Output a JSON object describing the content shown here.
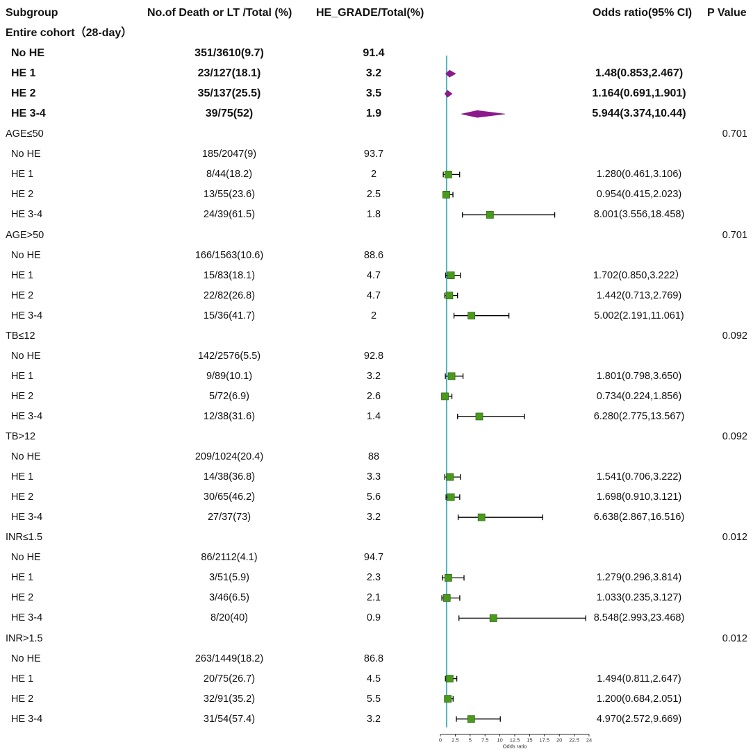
{
  "headers": {
    "subgroup": "Subgroup",
    "death": "No.of Death or LT /Total (%)",
    "hegrade": "HE_GRADE/Total(%)",
    "odds": "Odds ratio(95% CI)",
    "pvalue": "P Value"
  },
  "chart_data": {
    "type": "forest",
    "xlabel": "Odds ratio",
    "xlim": [
      0,
      24
    ],
    "reference_line": 1,
    "x_ticks": [
      "0",
      "2.5",
      "5",
      "7.5",
      "10",
      "12.5",
      "15",
      "17.5",
      "20",
      "22.5",
      "24"
    ],
    "rows": [
      {
        "kind": "section",
        "bold": true,
        "label": "Entire cohort（28-day）"
      },
      {
        "kind": "row",
        "bold": true,
        "label": "No HE",
        "death": "351/3610(9.7)",
        "hegrade": "91.4"
      },
      {
        "kind": "row",
        "bold": true,
        "marker": "diamond",
        "label": "HE 1",
        "death": "23/127(18.1)",
        "hegrade": "3.2",
        "or_text": "1.48(0.853,2.467)",
        "or": 1.48,
        "lo": 0.853,
        "hi": 2.467
      },
      {
        "kind": "row",
        "bold": true,
        "marker": "diamond",
        "label": "HE 2",
        "death": "35/137(25.5)",
        "hegrade": "3.5",
        "or_text": "1.164(0.691,1.901)",
        "or": 1.164,
        "lo": 0.691,
        "hi": 1.901
      },
      {
        "kind": "row",
        "bold": true,
        "marker": "diamond",
        "label": "HE 3-4",
        "death": "39/75(52)",
        "hegrade": "1.9",
        "or_text": "5.944(3.374,10.44)",
        "or": 5.944,
        "lo": 3.374,
        "hi": 10.44
      },
      {
        "kind": "section",
        "label": "AGE≤50",
        "p": "0.701"
      },
      {
        "kind": "row",
        "label": "No HE",
        "death": "185/2047(9)",
        "hegrade": "93.7"
      },
      {
        "kind": "row",
        "marker": "square",
        "label": "HE 1",
        "death": "8/44(18.2)",
        "hegrade": "2",
        "or_text": "1.280(0.461,3.106)",
        "or": 1.28,
        "lo": 0.461,
        "hi": 3.106
      },
      {
        "kind": "row",
        "marker": "square",
        "label": "HE 2",
        "death": "13/55(23.6)",
        "hegrade": "2.5",
        "or_text": "0.954(0.415,2.023)",
        "or": 0.954,
        "lo": 0.415,
        "hi": 2.023
      },
      {
        "kind": "row",
        "marker": "square",
        "label": "HE 3-4",
        "death": "24/39(61.5)",
        "hegrade": "1.8",
        "or_text": "8.001(3.556,18.458)",
        "or": 8.001,
        "lo": 3.556,
        "hi": 18.458
      },
      {
        "kind": "section",
        "label": "AGE>50",
        "p": "0.701"
      },
      {
        "kind": "row",
        "label": "No HE",
        "death": "166/1563(10.6)",
        "hegrade": "88.6"
      },
      {
        "kind": "row",
        "marker": "square",
        "label": "HE 1",
        "death": "15/83(18.1)",
        "hegrade": "4.7",
        "or_text": "1.702(0.850,3.222）",
        "or": 1.702,
        "lo": 0.85,
        "hi": 3.222
      },
      {
        "kind": "row",
        "marker": "square",
        "label": "HE 2",
        "death": "22/82(26.8)",
        "hegrade": "4.7",
        "or_text": "1.442(0.713,2.769)",
        "or": 1.442,
        "lo": 0.713,
        "hi": 2.769
      },
      {
        "kind": "row",
        "marker": "square",
        "label": "HE 3-4",
        "death": "15/36(41.7)",
        "hegrade": "2",
        "or_text": "5.002(2.191,11.061)",
        "or": 5.002,
        "lo": 2.191,
        "hi": 11.061
      },
      {
        "kind": "section",
        "label": "TB≤12",
        "p": "0.092"
      },
      {
        "kind": "row",
        "label": "No HE",
        "death": "142/2576(5.5)",
        "hegrade": "92.8"
      },
      {
        "kind": "row",
        "marker": "square",
        "label": "HE 1",
        "death": "9/89(10.1)",
        "hegrade": "3.2",
        "or_text": "1.801(0.798,3.650)",
        "or": 1.801,
        "lo": 0.798,
        "hi": 3.65
      },
      {
        "kind": "row",
        "marker": "square",
        "label": "HE 2",
        "death": "5/72(6.9)",
        "hegrade": "2.6",
        "or_text": "0.734(0.224,1.856)",
        "or": 0.734,
        "lo": 0.224,
        "hi": 1.856
      },
      {
        "kind": "row",
        "marker": "square",
        "label": "HE 3-4",
        "death": "12/38(31.6)",
        "hegrade": "1.4",
        "or_text": "6.280(2.775,13.567)",
        "or": 6.28,
        "lo": 2.775,
        "hi": 13.567
      },
      {
        "kind": "section",
        "label": "TB>12",
        "p": "0.092"
      },
      {
        "kind": "row",
        "label": "No HE",
        "death": "209/1024(20.4)",
        "hegrade": "88"
      },
      {
        "kind": "row",
        "marker": "square",
        "label": "HE 1",
        "death": "14/38(36.8)",
        "hegrade": "3.3",
        "or_text": "1.541(0.706,3.222)",
        "or": 1.541,
        "lo": 0.706,
        "hi": 3.222
      },
      {
        "kind": "row",
        "marker": "square",
        "label": "HE 2",
        "death": "30/65(46.2)",
        "hegrade": "5.6",
        "or_text": "1.698(0.910,3.121)",
        "or": 1.698,
        "lo": 0.91,
        "hi": 3.121
      },
      {
        "kind": "row",
        "marker": "square",
        "label": "HE 3-4",
        "death": "27/37(73)",
        "hegrade": "3.2",
        "or_text": "6.638(2.867,16.516)",
        "or": 6.638,
        "lo": 2.867,
        "hi": 16.516
      },
      {
        "kind": "section",
        "label": "INR≤1.5",
        "p": "0.012"
      },
      {
        "kind": "row",
        "label": "No HE",
        "death": "86/2112(4.1)",
        "hegrade": "94.7"
      },
      {
        "kind": "row",
        "marker": "square",
        "label": "HE 1",
        "death": "3/51(5.9)",
        "hegrade": "2.3",
        "or_text": "1.279(0.296,3.814)",
        "or": 1.279,
        "lo": 0.296,
        "hi": 3.814
      },
      {
        "kind": "row",
        "marker": "square",
        "label": "HE 2",
        "death": "3/46(6.5)",
        "hegrade": "2.1",
        "or_text": "1.033(0.235,3.127)",
        "or": 1.033,
        "lo": 0.235,
        "hi": 3.127
      },
      {
        "kind": "row",
        "marker": "square",
        "label": "HE 3-4",
        "death": "8/20(40)",
        "hegrade": "0.9",
        "or_text": "8.548(2.993,23.468)",
        "or": 8.548,
        "lo": 2.993,
        "hi": 23.468
      },
      {
        "kind": "section",
        "label": "INR>1.5",
        "p": "0.012"
      },
      {
        "kind": "row",
        "label": "No HE",
        "death": "263/1449(18.2)",
        "hegrade": "86.8"
      },
      {
        "kind": "row",
        "marker": "square",
        "label": "HE 1",
        "death": "20/75(26.7)",
        "hegrade": "4.5",
        "or_text": "1.494(0.811,2.647)",
        "or": 1.494,
        "lo": 0.811,
        "hi": 2.647
      },
      {
        "kind": "row",
        "marker": "square",
        "label": "HE 2",
        "death": "32/91(35.2)",
        "hegrade": "5.5",
        "or_text": "1.200(0.684,2.051)",
        "or": 1.2,
        "lo": 0.684,
        "hi": 2.051
      },
      {
        "kind": "row",
        "marker": "square",
        "label": "HE 3-4",
        "death": "31/54(57.4)",
        "hegrade": "3.2",
        "or_text": "4.970(2.572,9.669)",
        "or": 4.97,
        "lo": 2.572,
        "hi": 9.669
      }
    ]
  },
  "colors": {
    "diamond": "#8b1a8b",
    "square": "#4a9a1e",
    "square_border": "#2f6a10",
    "ref_line": "#4fb3bf",
    "whisker": "#000000"
  }
}
